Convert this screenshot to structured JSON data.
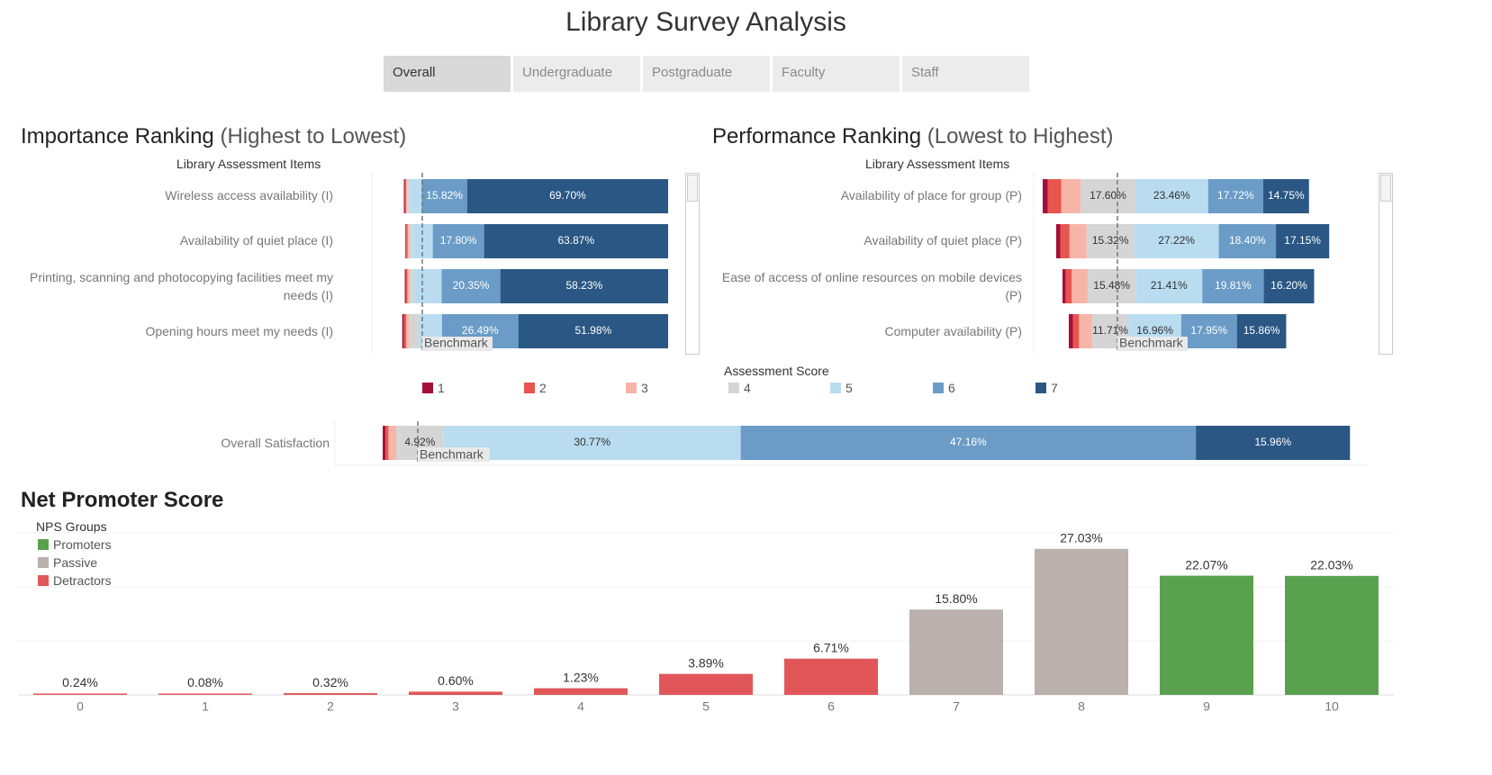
{
  "title": "Library Survey Analysis",
  "tabs": [
    {
      "label": "Overall",
      "active": true
    },
    {
      "label": "Undergraduate",
      "active": false
    },
    {
      "label": "Postgraduate",
      "active": false
    },
    {
      "label": "Faculty",
      "active": false
    },
    {
      "label": "Staff",
      "active": false
    }
  ],
  "importance": {
    "title": "Importance Ranking",
    "subtitle": "(Highest to Lowest)",
    "column_header": "Library Assessment Items"
  },
  "performance": {
    "title": "Performance Ranking",
    "subtitle": "(Lowest to Highest)",
    "column_header": "Library Assessment Items"
  },
  "benchmark_label": "Benchmark",
  "score_legend": {
    "title": "Assessment Score",
    "items": [
      {
        "label": "1",
        "color": "#a50f3c"
      },
      {
        "label": "2",
        "color": "#e8554e"
      },
      {
        "label": "3",
        "color": "#f7b5a8"
      },
      {
        "label": "4",
        "color": "#d5d5d5"
      },
      {
        "label": "5",
        "color": "#b9dcf0"
      },
      {
        "label": "6",
        "color": "#6a9cc7"
      },
      {
        "label": "7",
        "color": "#2a5783"
      }
    ]
  },
  "overall_satisfaction_label": "Overall Satisfaction",
  "nps": {
    "title": "Net Promoter Score",
    "legend_title": "NPS Groups",
    "groups": [
      {
        "label": "Promoters",
        "color": "#59a14f"
      },
      {
        "label": "Passive",
        "color": "#bab0ac"
      },
      {
        "label": "Detractors",
        "color": "#e15759"
      }
    ]
  },
  "chart_data": [
    {
      "id": "importance",
      "type": "bar",
      "stacked": true,
      "title": "Importance Ranking (Highest to Lowest)",
      "categories": [
        "Wireless access availability (I)",
        "Availability of quiet place (I)",
        "Printing, scanning and photocopying facilities meet my needs (I)",
        "Opening hours meet my needs (I)"
      ],
      "series": [
        {
          "name": "1",
          "values": [
            0.3,
            0.3,
            0.4,
            0.6
          ]
        },
        {
          "name": "2",
          "values": [
            0.5,
            0.5,
            0.5,
            0.8
          ]
        },
        {
          "name": "3",
          "values": [
            0.5,
            0.5,
            0.8,
            1.0
          ]
        },
        {
          "name": "4",
          "values": [
            0.8,
            1.2,
            1.5,
            3.3
          ]
        },
        {
          "name": "5",
          "values": [
            4.1,
            7.0,
            9.6,
            8.1
          ]
        },
        {
          "name": "6",
          "values": [
            15.82,
            17.8,
            20.35,
            26.49
          ]
        },
        {
          "name": "7",
          "values": [
            69.7,
            63.87,
            58.23,
            51.98
          ]
        }
      ],
      "labels": [
        [
          "",
          "",
          "",
          "",
          "",
          "15.82%",
          "69.70%"
        ],
        [
          "",
          "",
          "",
          "",
          "",
          "17.80%",
          "63.87%"
        ],
        [
          "",
          "",
          "",
          "",
          "",
          "20.35%",
          "58.23%"
        ],
        [
          "",
          "",
          "",
          "",
          "",
          "26.49%",
          "51.98%"
        ]
      ]
    },
    {
      "id": "performance",
      "type": "bar",
      "stacked": true,
      "title": "Performance Ranking (Lowest to Highest)",
      "categories": [
        "Availability of place for group (P)",
        "Availability of quiet place (P)",
        "Ease of access of online resources on mobile devices (P)",
        "Computer availability (P)"
      ],
      "series": [
        {
          "name": "1",
          "values": [
            1.6,
            1.3,
            1.0,
            1.3
          ]
        },
        {
          "name": "2",
          "values": [
            4.4,
            3.0,
            2.0,
            2.0
          ]
        },
        {
          "name": "3",
          "values": [
            6.2,
            5.5,
            5.1,
            4.2
          ]
        },
        {
          "name": "4",
          "values": [
            17.6,
            15.32,
            15.48,
            11.71
          ]
        },
        {
          "name": "5",
          "values": [
            23.46,
            27.22,
            21.41,
            16.96
          ]
        },
        {
          "name": "6",
          "values": [
            17.72,
            18.4,
            19.81,
            17.95
          ]
        },
        {
          "name": "7",
          "values": [
            14.75,
            17.15,
            16.2,
            15.86
          ]
        }
      ],
      "labels": [
        [
          "",
          "",
          "",
          "17.60%",
          "23.46%",
          "17.72%",
          "14.75%"
        ],
        [
          "",
          "",
          "",
          "15.32%",
          "27.22%",
          "18.40%",
          "17.15%"
        ],
        [
          "",
          "",
          "",
          "15.48%",
          "21.41%",
          "19.81%",
          "16.20%"
        ],
        [
          "",
          "",
          "",
          "11.71%",
          "16.96%",
          "17.95%",
          "15.86%"
        ]
      ]
    },
    {
      "id": "satisfaction",
      "type": "bar",
      "stacked": true,
      "title": "",
      "categories": [
        "Overall Satisfaction"
      ],
      "series": [
        {
          "name": "1",
          "values": [
            0.3
          ]
        },
        {
          "name": "2",
          "values": [
            0.3
          ]
        },
        {
          "name": "3",
          "values": [
            0.8
          ]
        },
        {
          "name": "4",
          "values": [
            4.92
          ]
        },
        {
          "name": "5",
          "values": [
            30.77
          ]
        },
        {
          "name": "6",
          "values": [
            47.16
          ]
        },
        {
          "name": "7",
          "values": [
            15.96
          ]
        }
      ],
      "labels": [
        [
          "",
          "",
          "",
          "4.92%",
          "30.77%",
          "47.16%",
          "15.96%"
        ]
      ]
    },
    {
      "id": "nps",
      "type": "bar",
      "title": "Net Promoter Score",
      "categories": [
        "0",
        "1",
        "2",
        "3",
        "4",
        "5",
        "6",
        "7",
        "8",
        "9",
        "10"
      ],
      "values": [
        0.24,
        0.08,
        0.32,
        0.6,
        1.23,
        3.89,
        6.71,
        15.8,
        27.03,
        22.07,
        22.03
      ],
      "value_labels": [
        "0.24%",
        "0.08%",
        "0.32%",
        "0.60%",
        "1.23%",
        "3.89%",
        "6.71%",
        "15.80%",
        "27.03%",
        "22.07%",
        "22.03%"
      ],
      "groups": [
        "Detractors",
        "Detractors",
        "Detractors",
        "Detractors",
        "Detractors",
        "Detractors",
        "Detractors",
        "Passive",
        "Passive",
        "Promoters",
        "Promoters"
      ],
      "ylim": [
        0,
        30
      ]
    }
  ]
}
